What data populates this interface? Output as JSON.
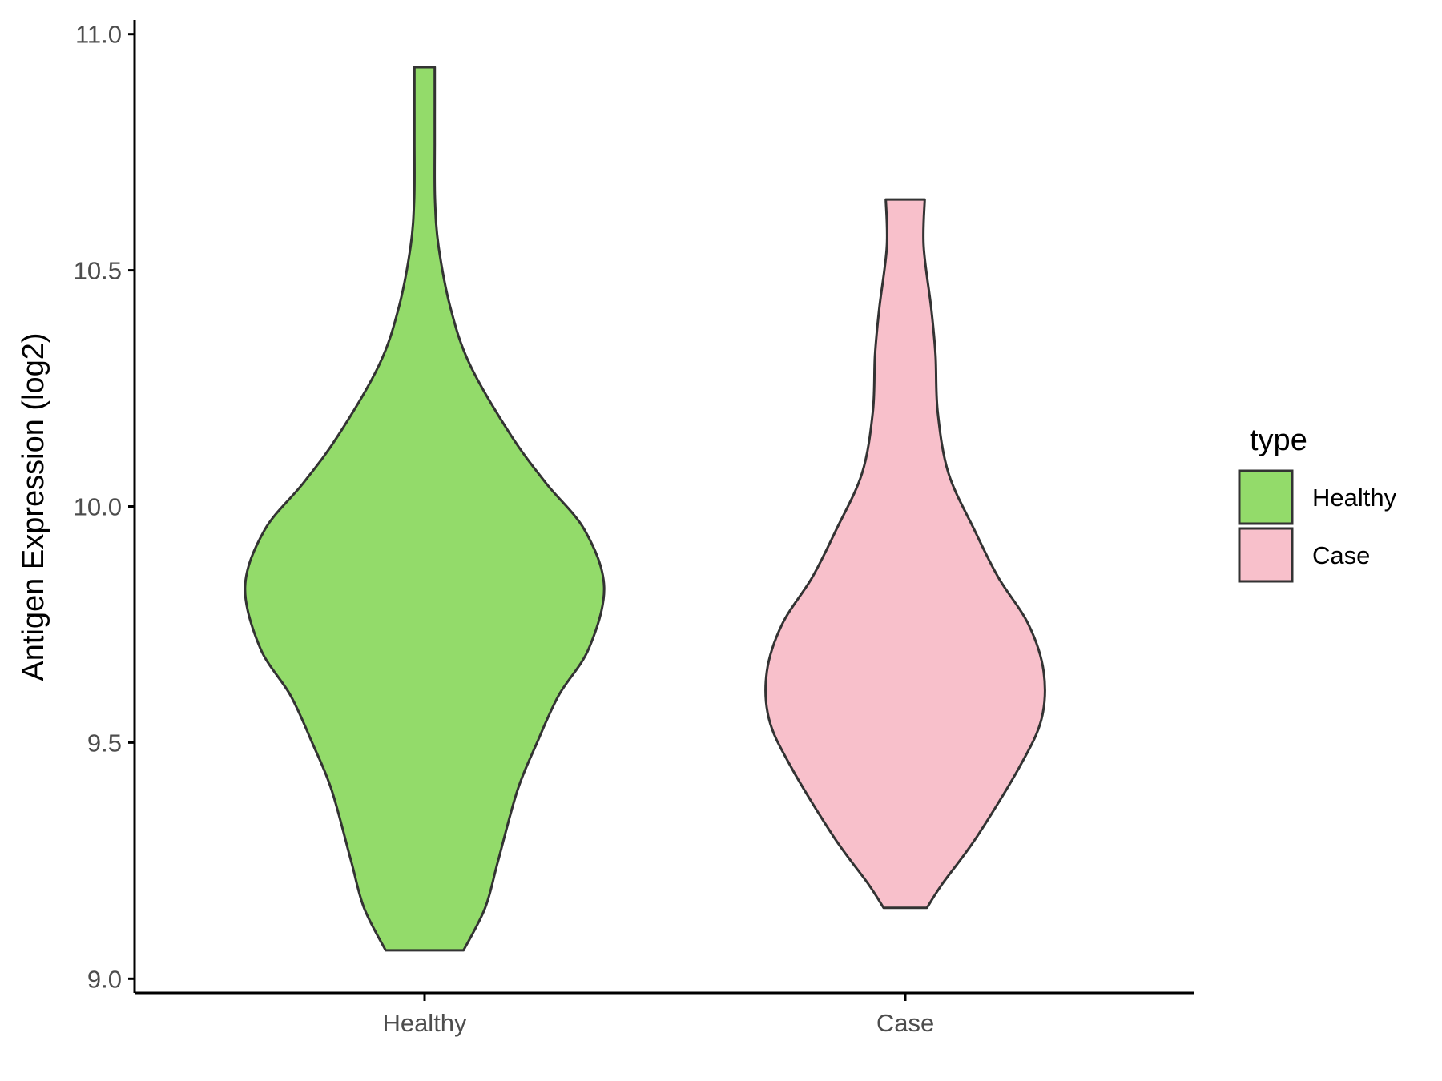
{
  "chart_data": {
    "type": "violin",
    "title": "",
    "xlabel": "",
    "ylabel": "Antigen Expression (log2)",
    "ylim": [
      8.97,
      11.03
    ],
    "yticks": [
      "9.0",
      "9.5",
      "10.0",
      "10.5",
      "11.0"
    ],
    "categories": [
      "Healthy",
      "Case"
    ],
    "grid": false,
    "legend": {
      "title": "type",
      "position": "right",
      "entries": [
        "Healthy",
        "Case"
      ]
    },
    "series": [
      {
        "name": "Healthy",
        "color": "#93DB6A",
        "min": 9.06,
        "max": 10.93,
        "density": [
          [
            9.06,
            0.18
          ],
          [
            9.15,
            0.28
          ],
          [
            9.25,
            0.34
          ],
          [
            9.4,
            0.43
          ],
          [
            9.5,
            0.52
          ],
          [
            9.6,
            0.62
          ],
          [
            9.7,
            0.76
          ],
          [
            9.83,
            0.83
          ],
          [
            9.95,
            0.74
          ],
          [
            10.05,
            0.56
          ],
          [
            10.15,
            0.4
          ],
          [
            10.3,
            0.21
          ],
          [
            10.42,
            0.12
          ],
          [
            10.55,
            0.065
          ],
          [
            10.65,
            0.048
          ],
          [
            10.77,
            0.047
          ],
          [
            10.85,
            0.047
          ],
          [
            10.93,
            0.047
          ]
        ]
      },
      {
        "name": "Case",
        "color": "#F8C0CB",
        "min": 9.15,
        "max": 10.65,
        "density": [
          [
            9.15,
            0.1
          ],
          [
            9.2,
            0.17
          ],
          [
            9.3,
            0.33
          ],
          [
            9.45,
            0.53
          ],
          [
            9.55,
            0.63
          ],
          [
            9.65,
            0.64
          ],
          [
            9.75,
            0.57
          ],
          [
            9.85,
            0.43
          ],
          [
            9.95,
            0.32
          ],
          [
            10.07,
            0.2
          ],
          [
            10.2,
            0.15
          ],
          [
            10.32,
            0.14
          ],
          [
            10.42,
            0.12
          ],
          [
            10.55,
            0.085
          ],
          [
            10.65,
            0.09
          ]
        ]
      }
    ]
  }
}
